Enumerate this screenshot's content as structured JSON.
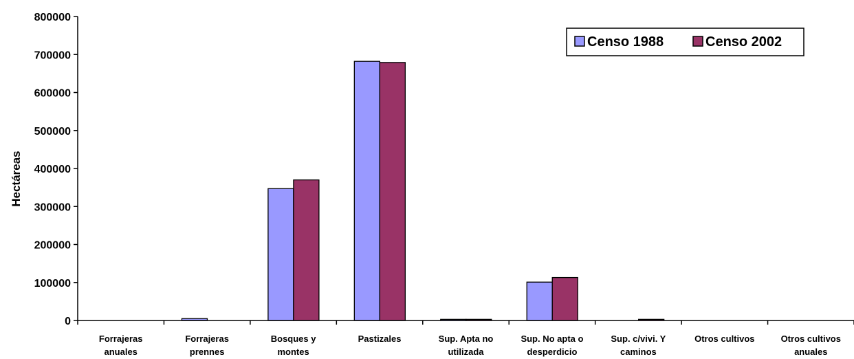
{
  "chart_data": {
    "type": "bar",
    "title": "",
    "xlabel": "",
    "ylabel": "Hectáreas",
    "ylim": [
      0,
      800000
    ],
    "yticks": [
      0,
      100000,
      200000,
      300000,
      400000,
      500000,
      600000,
      700000,
      800000
    ],
    "grid": false,
    "legend_position": "top-right",
    "categories": [
      [
        "Forrajeras",
        "anuales"
      ],
      [
        "Forrajeras",
        "prennes"
      ],
      [
        "Bosques y",
        "montes"
      ],
      [
        "Pastizales"
      ],
      [
        "Sup. Apta no",
        "utilizada"
      ],
      [
        "Sup. No apta o",
        "desperdicio"
      ],
      [
        "Sup. c/vivi. Y",
        "caminos"
      ],
      [
        "Otros cultivos"
      ],
      [
        "Otros cultivos",
        "anuales"
      ]
    ],
    "series": [
      {
        "name": "Censo 1988",
        "color": "#9999ff",
        "values": [
          0,
          5000,
          347000,
          682000,
          3000,
          101000,
          0,
          0,
          0
        ]
      },
      {
        "name": "Censo 2002",
        "color": "#993366",
        "values": [
          0,
          0,
          370000,
          679000,
          3000,
          113000,
          3000,
          0,
          0
        ]
      }
    ]
  }
}
